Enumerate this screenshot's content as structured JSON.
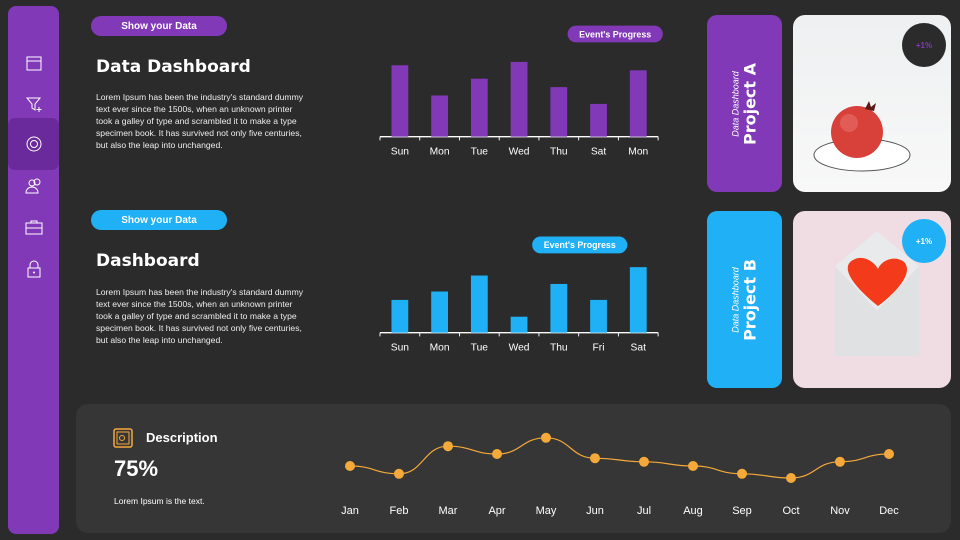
{
  "sidebar": {
    "items": [
      {
        "icon": "calendar-icon"
      },
      {
        "icon": "filter-add-icon"
      },
      {
        "icon": "gear-icon",
        "active": true
      },
      {
        "icon": "users-icon"
      },
      {
        "icon": "briefcase-icon"
      },
      {
        "icon": "lock-icon"
      }
    ]
  },
  "section1": {
    "pill": "Show your  Data",
    "title": "Data Dashboard",
    "text": "Lorem Ipsum has been the industry's standard dummy text ever since the 1500s, when an unknown printer took a galley of type and scrambled it to make a type specimen book. It has survived not only five centuries, but also the leap into unchanged.",
    "color": "#8139b8"
  },
  "section2": {
    "pill": "Show your  Data",
    "title": "Dashboard",
    "text": "Lorem Ipsum has been the industry's standard dummy text ever since the 1500s, when an unknown printer took a galley of type and scrambled it to make a type specimen book. It has survived not only five centuries, but also the leap into unchanged.",
    "color": "#1fb0f5"
  },
  "projects": [
    {
      "sub": "Data Dashboard",
      "title": "Project A",
      "badge": "+1%",
      "color": "#8139b8"
    },
    {
      "sub": "Data Dashboard",
      "title": "Project B",
      "badge": "+1%",
      "color": "#1fb0f5"
    }
  ],
  "description": {
    "title": "Description",
    "value": "75%",
    "text": "Lorem Ipsum is the text."
  },
  "chart_data": [
    {
      "type": "bar",
      "legend": "Event's Progress",
      "categories": [
        "Sun",
        "Mon",
        "Tue",
        "Wed",
        "Thu",
        "Sat",
        "Mon"
      ],
      "values": [
        85,
        49,
        69,
        89,
        59,
        39,
        79
      ],
      "ylim": [
        0,
        100
      ],
      "color": "#8139b8"
    },
    {
      "type": "bar",
      "legend": "Event's Progress",
      "categories": [
        "Sun",
        "Mon",
        "Tue",
        "Wed",
        "Thu",
        "Fri",
        "Sat"
      ],
      "values": [
        39,
        49,
        68,
        19,
        58,
        39,
        78
      ],
      "ylim": [
        0,
        100
      ],
      "color": "#1fb0f5"
    },
    {
      "type": "line",
      "categories": [
        "Jan",
        "Feb",
        "Mar",
        "Apr",
        "May",
        "Jun",
        "Jul",
        "Aug",
        "Sep",
        "Oct",
        "Nov",
        "Dec"
      ],
      "values": [
        40,
        27,
        73,
        60,
        87,
        53,
        47,
        40,
        27,
        20,
        47,
        60
      ],
      "ylim": [
        0,
        100
      ],
      "color": "#f5a93a"
    }
  ]
}
